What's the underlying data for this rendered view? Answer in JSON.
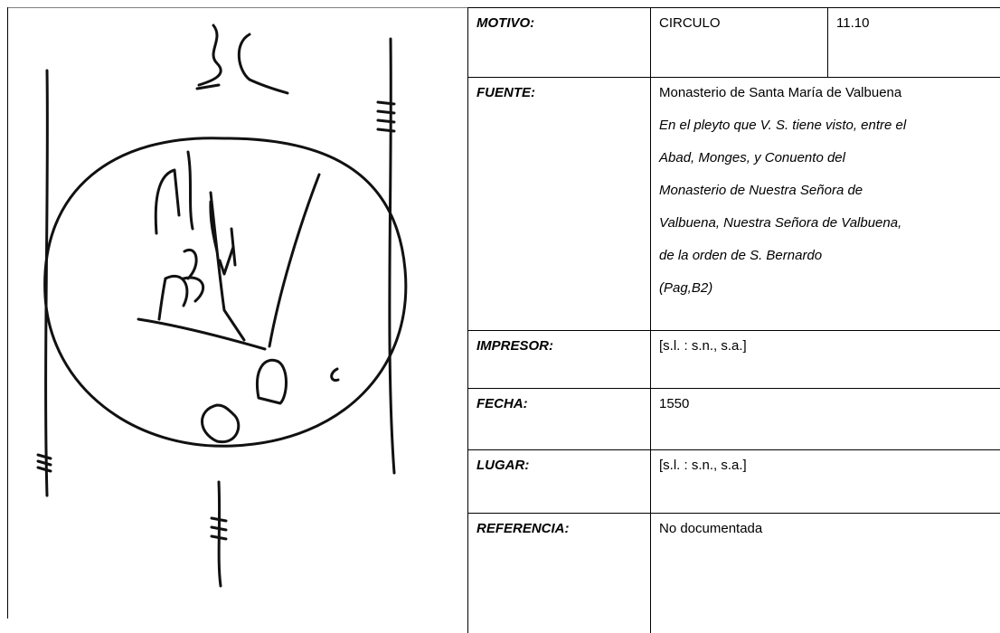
{
  "record": {
    "rows": [
      {
        "label": "MOTIVO:",
        "values": [
          "CIRCULO",
          "11.10"
        ]
      },
      {
        "label": "FUENTE:",
        "values": [
          "Monasterio de Santa María de Valbuena"
        ],
        "italic_lines": [
          "En el pleyto que V. S. tiene visto, entre el",
          "Abad, Monges, y Conuento del",
          "Monasterio de Nuestra Señora de",
          "Valbuena, Nuestra Señora de Valbuena,",
          "de la orden de S. Bernardo",
          "(Pag,B2)"
        ]
      },
      {
        "label": "IMPRESOR:",
        "values": [
          "[s.l. : s.n., s.a.]"
        ]
      },
      {
        "label": "FECHA:",
        "values": [
          "1550"
        ]
      },
      {
        "label": "LUGAR:",
        "values": [
          "[s.l. : s.n., s.a.]"
        ]
      },
      {
        "label": "REFERENCIA:",
        "values": [
          "No documentada"
        ]
      }
    ]
  }
}
